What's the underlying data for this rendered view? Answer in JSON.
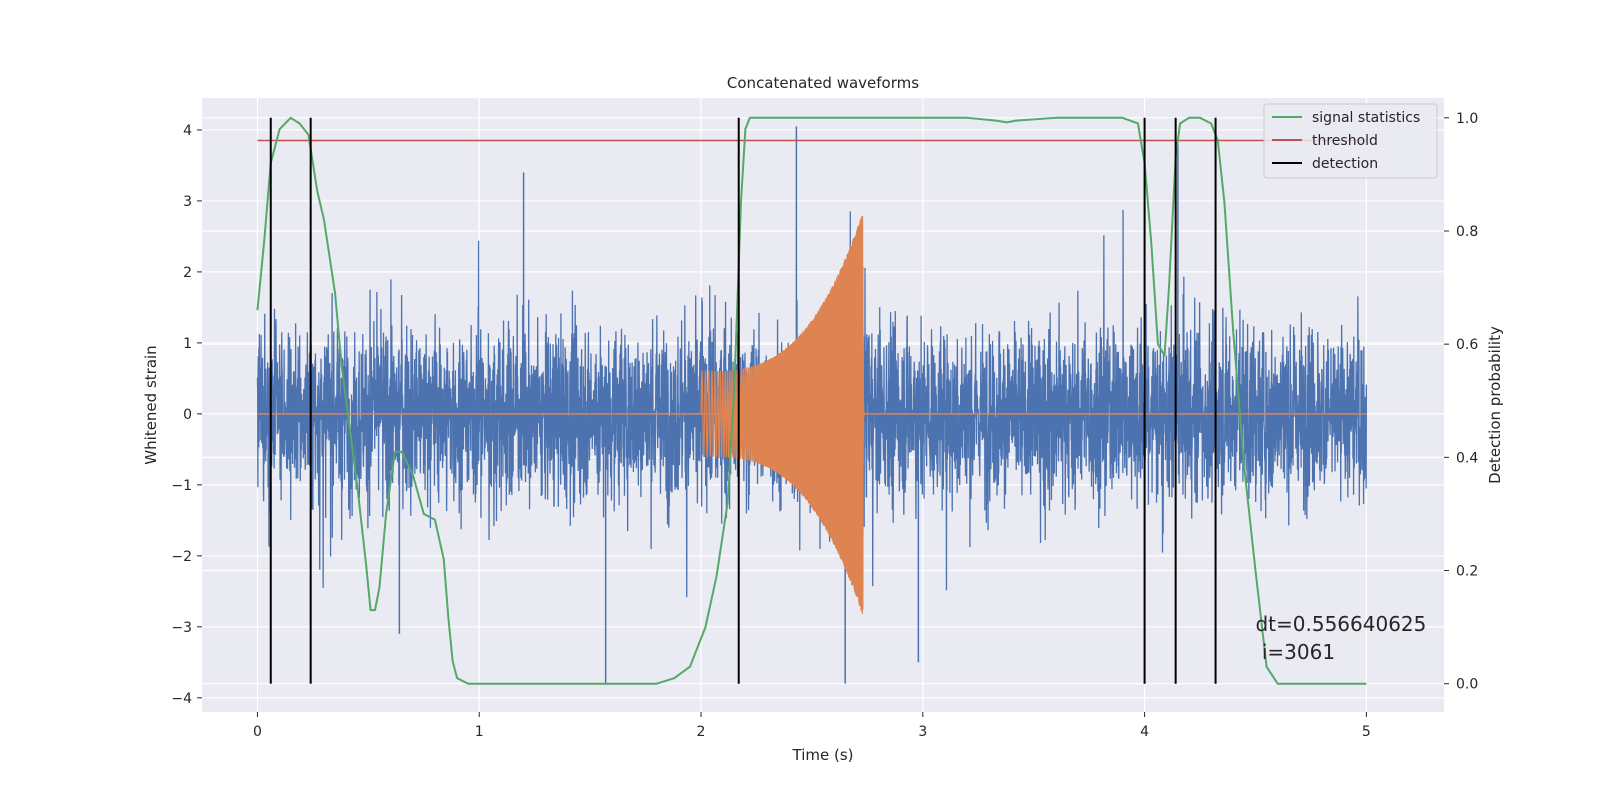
{
  "chart_data": {
    "type": "line",
    "title": "Concatenated waveforms",
    "xlabel": "Time (s)",
    "ylabel": "Whitened strain",
    "y2label": "Detection probability",
    "xlim": [
      -0.25,
      5.35
    ],
    "ylim": [
      -4.2,
      4.45
    ],
    "y2lim": [
      -0.05,
      1.035
    ],
    "xticks": [
      0,
      1,
      2,
      3,
      4,
      5
    ],
    "yticks": [
      -4,
      -3,
      -2,
      -1,
      0,
      1,
      2,
      3,
      4
    ],
    "y2ticks": [
      0.0,
      0.2,
      0.4,
      0.6,
      0.8,
      1.0
    ],
    "y2tick_labels": [
      "0.0",
      "0.2",
      "0.4",
      "0.6",
      "0.8",
      "1.0"
    ],
    "grid": true,
    "legend_position": "top-right",
    "colors": {
      "background": "#eaeaf2",
      "noise": "#4c72b0",
      "injection": "#dd8452",
      "signal": "#55a868",
      "threshold": "#c44e52",
      "detection": "#000000"
    },
    "series": [
      {
        "name": "noisy strain",
        "axis": "left",
        "x_range": [
          0,
          5
        ],
        "amplitude_band": [
          -2.8,
          3.4
        ],
        "peak_values": [
          {
            "x": 2.43,
            "y": 4.05
          },
          {
            "x": 1.57,
            "y": -3.8
          },
          {
            "x": 2.65,
            "y": -3.8
          },
          {
            "x": 0.64,
            "y": -3.1
          },
          {
            "x": 2.98,
            "y": -3.5
          },
          {
            "x": 1.2,
            "y": 3.4
          },
          {
            "x": 4.15,
            "y": 3.8
          }
        ]
      },
      {
        "name": "injected waveform",
        "axis": "left",
        "x_range": [
          2.0,
          2.74
        ],
        "envelope_start": 0.6,
        "envelope_peak": 2.85,
        "envelope_peak_x": 2.73
      },
      {
        "name": "signal statistics",
        "axis": "right",
        "x": [
          0.0,
          0.03,
          0.06,
          0.1,
          0.15,
          0.19,
          0.23,
          0.27,
          0.3,
          0.35,
          0.38,
          0.41,
          0.45,
          0.49,
          0.51,
          0.53,
          0.55,
          0.58,
          0.62,
          0.65,
          0.7,
          0.75,
          0.8,
          0.84,
          0.86,
          0.88,
          0.9,
          0.95,
          1.0,
          1.3,
          1.6,
          1.8,
          1.88,
          1.95,
          2.02,
          2.07,
          2.12,
          2.15,
          2.18,
          2.2,
          2.22,
          2.25,
          2.5,
          3.0,
          3.2,
          3.33,
          3.38,
          3.42,
          3.6,
          3.9,
          3.97,
          4.0,
          4.03,
          4.06,
          4.09,
          4.11,
          4.14,
          4.16,
          4.2,
          4.25,
          4.3,
          4.33,
          4.36,
          4.4,
          4.45,
          4.5,
          4.55,
          4.6,
          4.7,
          4.8,
          5.0
        ],
        "y": [
          0.66,
          0.78,
          0.92,
          0.98,
          1.0,
          0.99,
          0.97,
          0.87,
          0.82,
          0.69,
          0.56,
          0.47,
          0.35,
          0.21,
          0.13,
          0.13,
          0.17,
          0.3,
          0.41,
          0.41,
          0.37,
          0.3,
          0.29,
          0.22,
          0.12,
          0.04,
          0.01,
          0.0,
          0.0,
          0.0,
          0.0,
          0.0,
          0.01,
          0.03,
          0.1,
          0.19,
          0.32,
          0.52,
          0.85,
          0.98,
          1.0,
          1.0,
          1.0,
          1.0,
          1.0,
          0.995,
          0.992,
          0.995,
          1.0,
          1.0,
          0.99,
          0.92,
          0.78,
          0.6,
          0.58,
          0.7,
          0.93,
          0.99,
          1.0,
          1.0,
          0.99,
          0.96,
          0.85,
          0.62,
          0.38,
          0.2,
          0.03,
          0.0,
          0.0,
          0.0,
          0.0
        ]
      },
      {
        "name": "threshold",
        "axis": "right",
        "x": [
          0,
          5
        ],
        "y": [
          0.96,
          0.96
        ]
      },
      {
        "name": "detection",
        "axis": "right",
        "type": "vlines",
        "x": [
          0.06,
          0.24,
          2.17,
          4.0,
          4.14,
          4.32
        ],
        "ymin": 0.0,
        "ymax": 1.0
      }
    ],
    "legend": [
      {
        "label": "signal statistics",
        "color": "#55a868"
      },
      {
        "label": "threshold",
        "color": "#c44e52"
      },
      {
        "label": "detection",
        "color": "#000000"
      }
    ],
    "annotation": {
      "line1": "dt=0.556640625",
      "line2": " i=3061",
      "x": 4.5,
      "y": 0.09
    }
  }
}
